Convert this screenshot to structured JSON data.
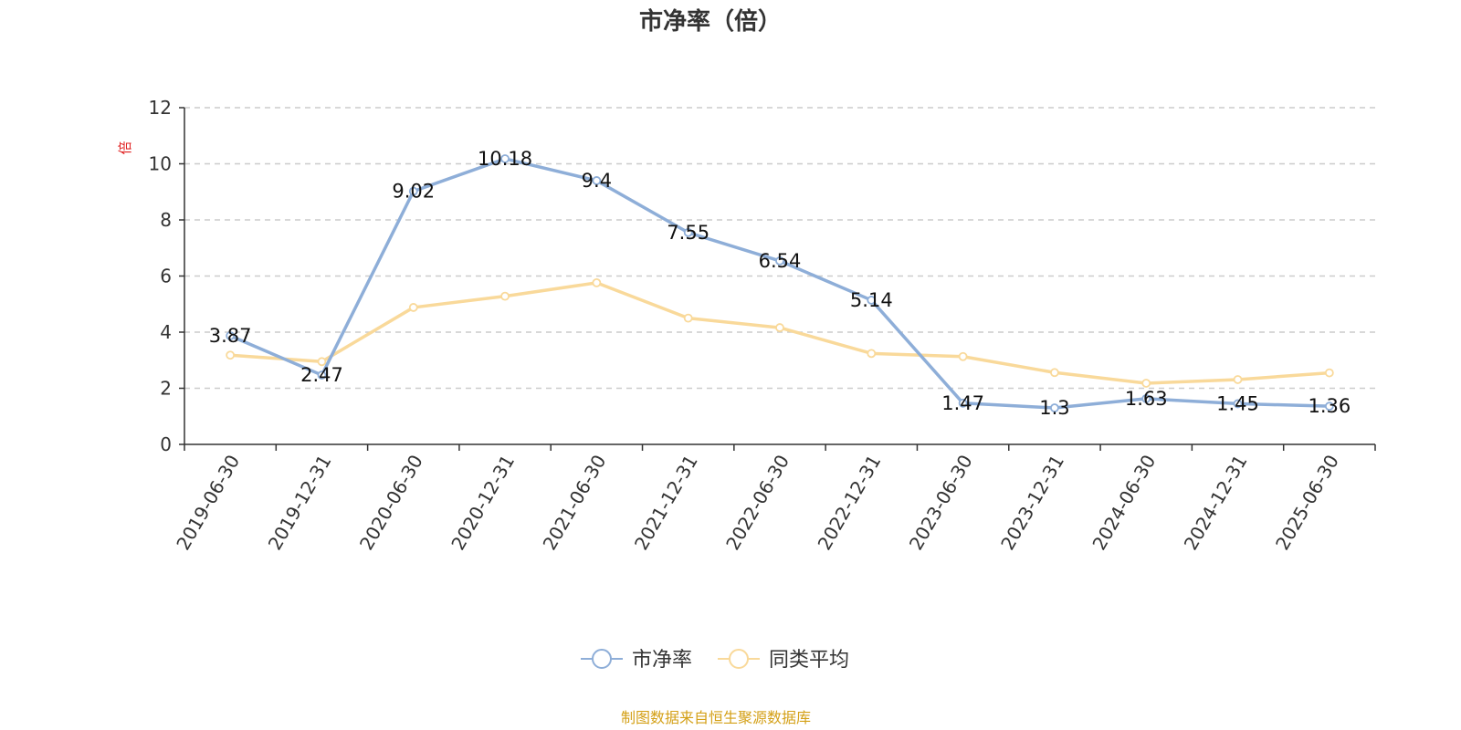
{
  "chart_data": {
    "type": "line",
    "title": "市净率（倍）",
    "ylabel": "倍",
    "xlabel": "",
    "categories": [
      "2019-06-30",
      "2019-12-31",
      "2020-06-30",
      "2020-12-31",
      "2021-06-30",
      "2021-12-31",
      "2022-06-30",
      "2022-12-31",
      "2023-06-30",
      "2023-12-31",
      "2024-06-30",
      "2024-12-31",
      "2025-06-30"
    ],
    "ylim": [
      0,
      12
    ],
    "yticks": [
      0,
      2,
      4,
      6,
      8,
      10,
      12
    ],
    "grid": true,
    "legend_position": "bottom",
    "series": [
      {
        "name": "市净率",
        "color": "#8eaed8",
        "values": [
          3.87,
          2.47,
          9.02,
          10.18,
          9.4,
          7.55,
          6.54,
          5.14,
          1.47,
          1.3,
          1.63,
          1.45,
          1.36
        ],
        "labels": [
          "3.87",
          "2.47",
          "9.02",
          "10.18",
          "9.4",
          "7.55",
          "6.54",
          "5.14",
          "1.47",
          "1.3",
          "1.63",
          "1.45",
          "1.36"
        ]
      },
      {
        "name": "同类平均",
        "color": "#f9d99a",
        "values": [
          3.18,
          2.95,
          4.88,
          5.28,
          5.76,
          4.5,
          4.16,
          3.24,
          3.13,
          2.56,
          2.18,
          2.31,
          2.55
        ]
      }
    ]
  },
  "source_text": "制图数据来自恒生聚源数据库",
  "colors": {
    "axis": "#333333",
    "grid": "#cccccc",
    "unit": "#e02020",
    "source": "#d4a017"
  }
}
